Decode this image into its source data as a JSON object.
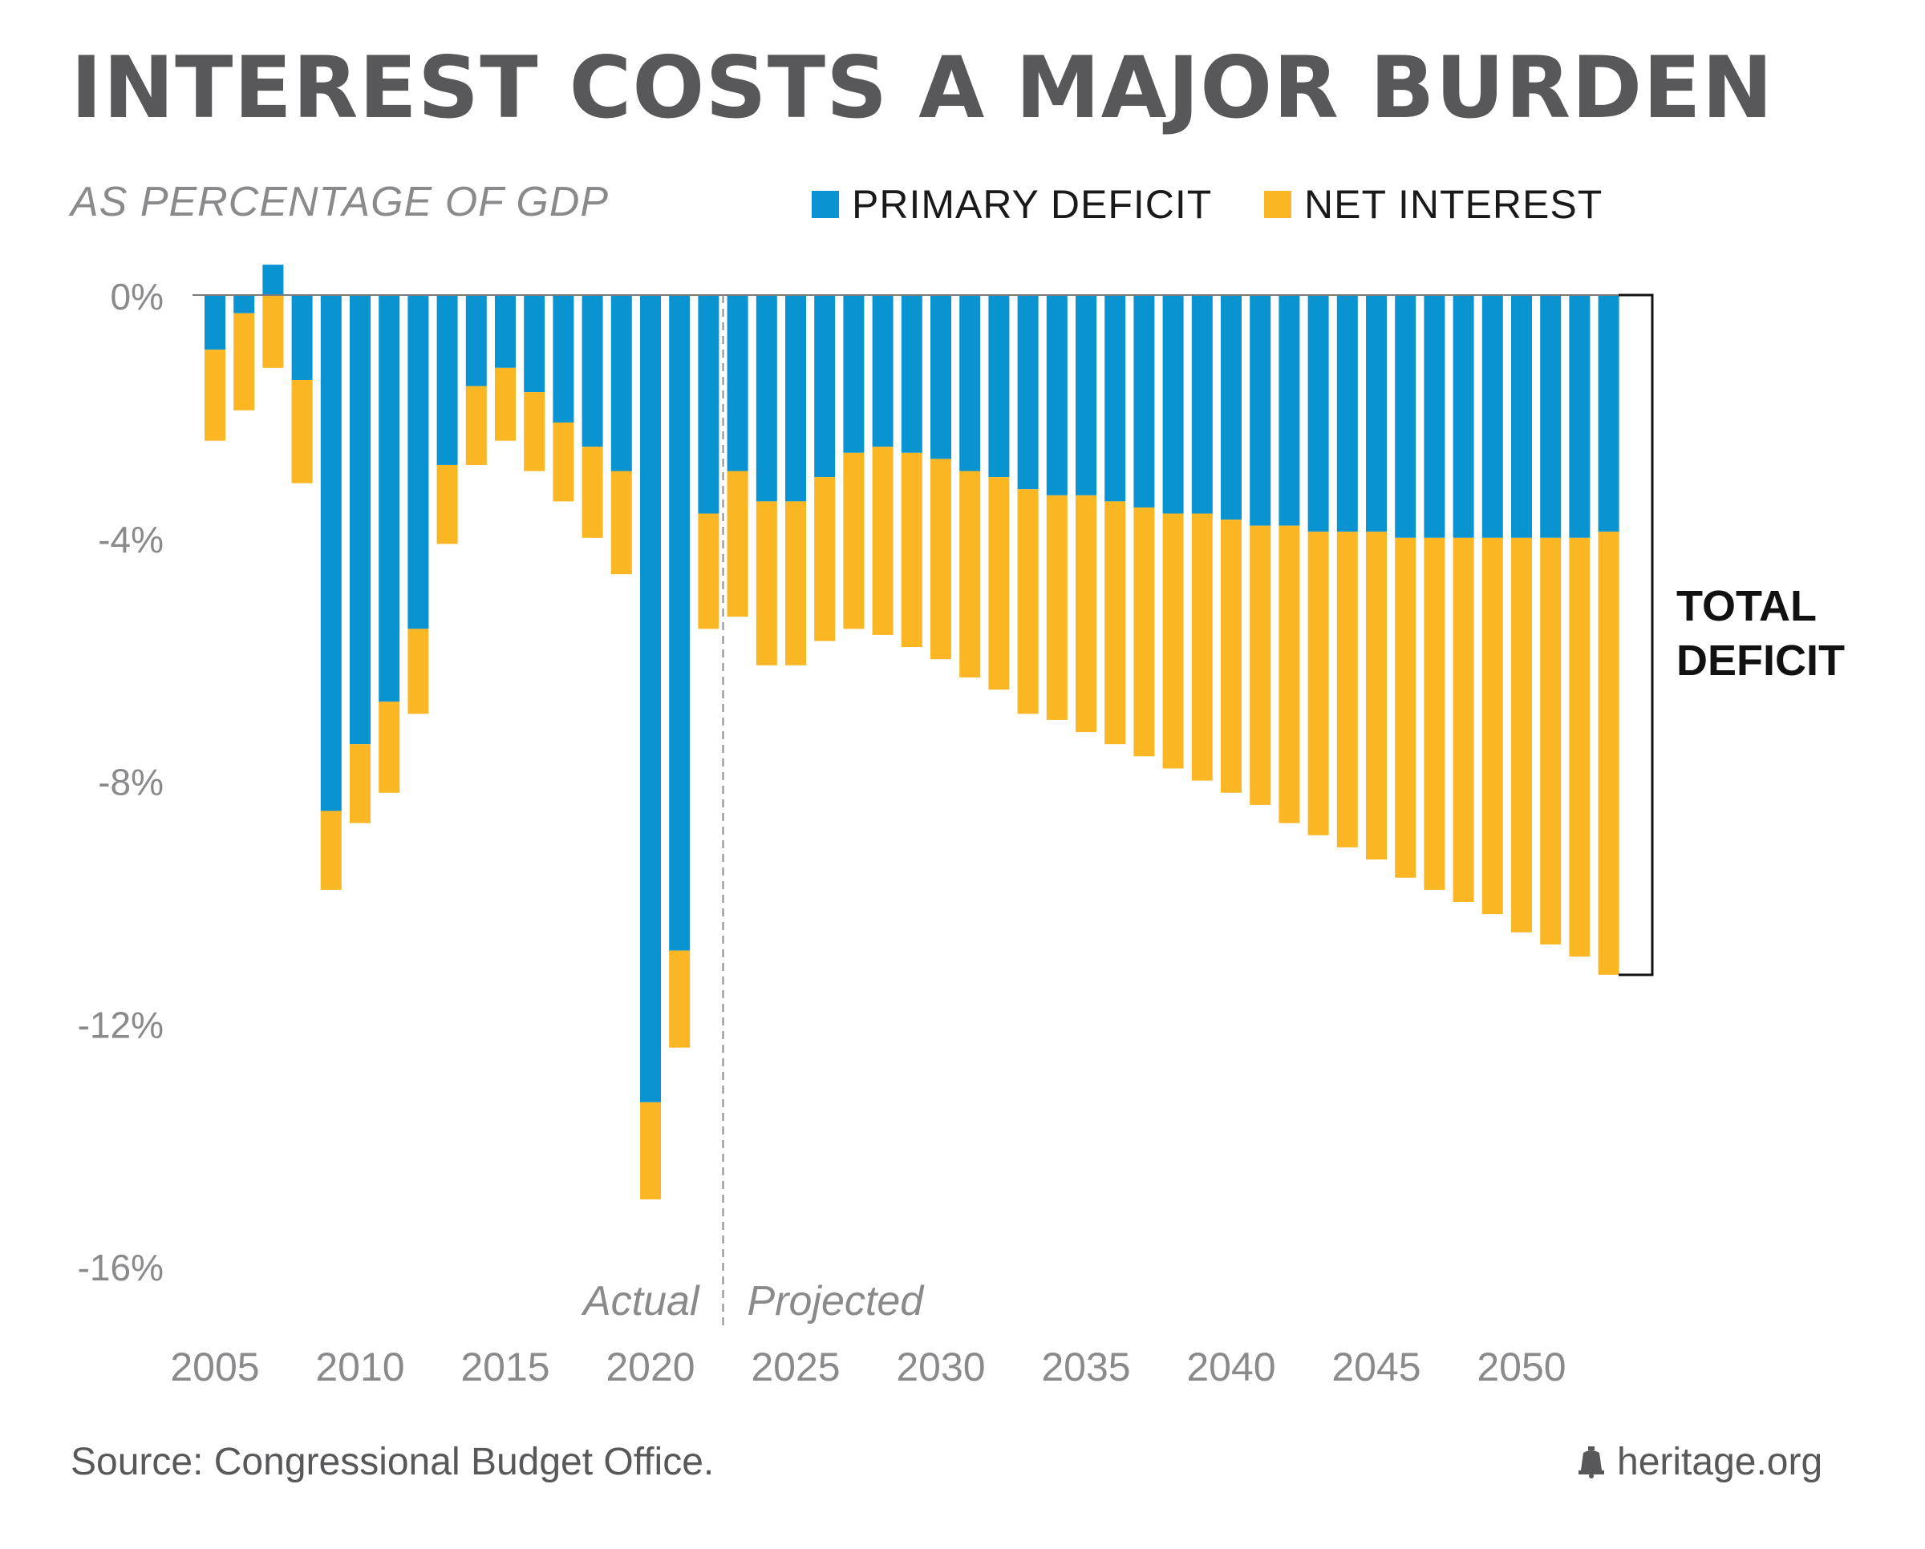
{
  "title": "INTEREST COSTS A MAJOR BURDEN",
  "subtitle": "AS PERCENTAGE OF GDP",
  "legend": {
    "primary_label": "PRIMARY DEFICIT",
    "interest_label": "NET INTEREST"
  },
  "colors": {
    "primary": "#0a93d1",
    "interest": "#fbb623",
    "axis_text": "#8a8a8d",
    "title": "#58585a"
  },
  "annotations": {
    "total_deficit_line1": "TOTAL",
    "total_deficit_line2": "DEFICIT",
    "actual": "Actual",
    "projected": "Projected"
  },
  "footer": {
    "source": "Source: Congressional Budget Office.",
    "brand": "heritage.org",
    "brand_icon": "liberty-bell-icon"
  },
  "chart_data": {
    "type": "bar",
    "stacked": true,
    "y_unit": "% of GDP",
    "ylim": [
      -16,
      0
    ],
    "y_ticks": [
      {
        "value": 0,
        "label": "0%"
      },
      {
        "value": -4,
        "label": "-4%"
      },
      {
        "value": -8,
        "label": "-8%"
      },
      {
        "value": -12,
        "label": "-12%"
      },
      {
        "value": -16,
        "label": "-16%"
      }
    ],
    "x_ticks": [
      "2005",
      "2010",
      "2015",
      "2020",
      "2025",
      "2030",
      "2035",
      "2040",
      "2045",
      "2050"
    ],
    "categories": [
      2005,
      2006,
      2007,
      2008,
      2009,
      2010,
      2011,
      2012,
      2013,
      2014,
      2015,
      2016,
      2017,
      2018,
      2019,
      2020,
      2021,
      2022,
      2023,
      2024,
      2025,
      2026,
      2027,
      2028,
      2029,
      2030,
      2031,
      2032,
      2033,
      2034,
      2035,
      2036,
      2037,
      2038,
      2039,
      2040,
      2041,
      2042,
      2043,
      2044,
      2045,
      2046,
      2047,
      2048,
      2049,
      2050,
      2051,
      2052,
      2053
    ],
    "actual_through": 2022,
    "series": [
      {
        "name": "PRIMARY DEFICIT",
        "values": [
          -0.9,
          -0.3,
          0.5,
          -1.4,
          -8.5,
          -7.4,
          -6.7,
          -5.5,
          -2.8,
          -1.5,
          -1.2,
          -1.6,
          -2.1,
          -2.5,
          -2.9,
          -13.3,
          -10.8,
          -3.6,
          -2.9,
          -3.4,
          -3.4,
          -3.0,
          -2.6,
          -2.5,
          -2.6,
          -2.7,
          -2.9,
          -3.0,
          -3.2,
          -3.3,
          -3.3,
          -3.4,
          -3.5,
          -3.6,
          -3.6,
          -3.7,
          -3.8,
          -3.8,
          -3.9,
          -3.9,
          -3.9,
          -4.0,
          -4.0,
          -4.0,
          -4.0,
          -4.0,
          -4.0,
          -4.0,
          -3.9
        ]
      },
      {
        "name": "NET INTEREST",
        "values": [
          -1.5,
          -1.6,
          -1.2,
          -1.7,
          -1.3,
          -1.3,
          -1.5,
          -1.4,
          -1.3,
          -1.3,
          -1.2,
          -1.3,
          -1.3,
          -1.5,
          -1.7,
          -1.6,
          -1.6,
          -1.9,
          -2.4,
          -2.7,
          -2.7,
          -2.7,
          -2.9,
          -3.1,
          -3.2,
          -3.3,
          -3.4,
          -3.5,
          -3.7,
          -3.7,
          -3.9,
          -4.0,
          -4.1,
          -4.2,
          -4.4,
          -4.5,
          -4.6,
          -4.9,
          -5.0,
          -5.2,
          -5.4,
          -5.6,
          -5.8,
          -6.0,
          -6.2,
          -6.5,
          -6.7,
          -6.9,
          -7.3
        ]
      }
    ],
    "bracket_range": [
      0,
      -11.2
    ]
  }
}
